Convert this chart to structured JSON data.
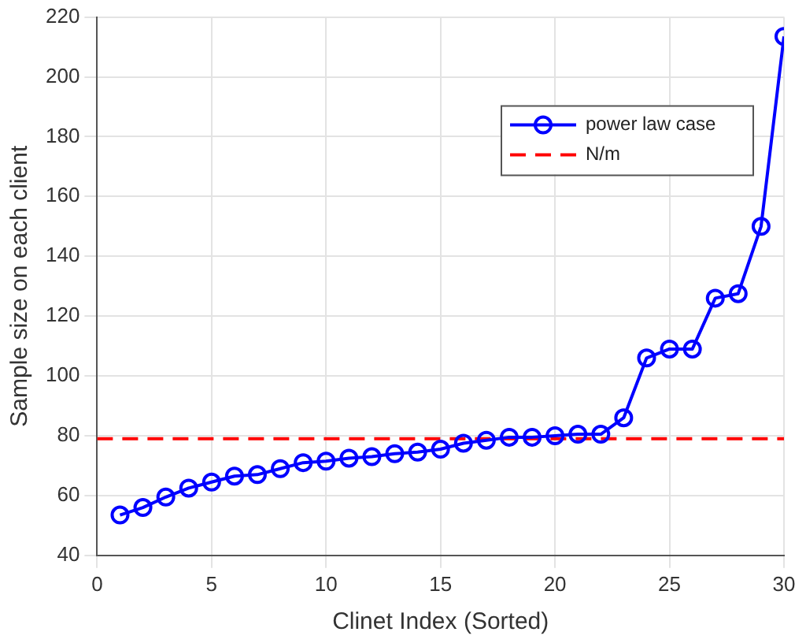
{
  "chart_data": {
    "type": "line",
    "xlabel": "Clinet Index (Sorted)",
    "ylabel": "Sample size on each client",
    "x": [
      1,
      2,
      3,
      4,
      5,
      6,
      7,
      8,
      9,
      10,
      11,
      12,
      13,
      14,
      15,
      16,
      17,
      18,
      19,
      20,
      21,
      22,
      23,
      24,
      25,
      26,
      27,
      28,
      29,
      30
    ],
    "series": [
      {
        "name": "power law case",
        "color": "#0000ff",
        "values": [
          53.5,
          56,
          59.5,
          62.5,
          64.5,
          66.5,
          67,
          69,
          71,
          71.5,
          72.5,
          73,
          74,
          74.5,
          75.5,
          77.5,
          78.5,
          79.5,
          79.5,
          80,
          80.5,
          80.5,
          86,
          106,
          109,
          109,
          126,
          127.5,
          150,
          213.5
        ]
      }
    ],
    "ref_lines": [
      {
        "axis": "y",
        "value": 79,
        "label": "N/m",
        "color": "#ff0000",
        "line_style": "dashed"
      }
    ],
    "xlim": [
      0,
      30
    ],
    "xticks": [
      0,
      5,
      10,
      15,
      20,
      25,
      30
    ],
    "ylim": [
      40,
      220
    ],
    "yticks": [
      40,
      60,
      80,
      100,
      120,
      140,
      160,
      180,
      200,
      220
    ],
    "grid": true,
    "legend": "top right",
    "marker": "circle",
    "line_style": "solid"
  }
}
